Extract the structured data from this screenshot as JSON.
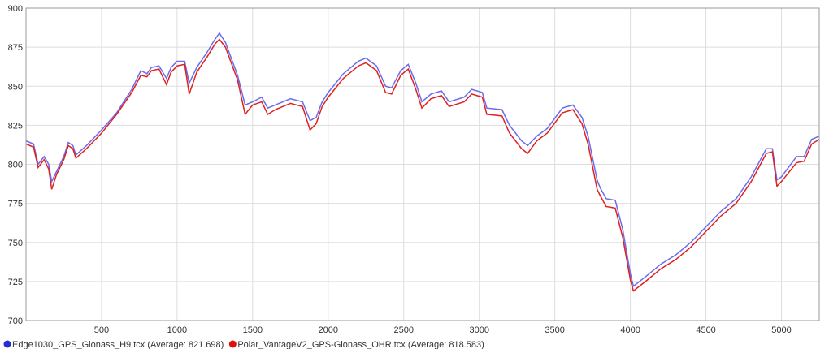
{
  "chart_data": {
    "type": "line",
    "x": [
      0,
      50,
      80,
      120,
      150,
      170,
      200,
      250,
      280,
      310,
      330,
      400,
      500,
      600,
      700,
      760,
      800,
      830,
      880,
      930,
      960,
      1000,
      1050,
      1080,
      1130,
      1200,
      1250,
      1280,
      1320,
      1400,
      1450,
      1500,
      1560,
      1600,
      1650,
      1750,
      1830,
      1880,
      1920,
      1960,
      2000,
      2100,
      2200,
      2250,
      2320,
      2380,
      2420,
      2480,
      2530,
      2580,
      2620,
      2680,
      2750,
      2800,
      2900,
      2950,
      3020,
      3050,
      3150,
      3200,
      3280,
      3320,
      3380,
      3450,
      3550,
      3620,
      3680,
      3720,
      3780,
      3800,
      3840,
      3900,
      3950,
      4000,
      4020,
      4100,
      4200,
      4300,
      4400,
      4500,
      4600,
      4700,
      4800,
      4900,
      4940,
      4970,
      5000,
      5100,
      5150,
      5200,
      5250
    ],
    "series": [
      {
        "name": "Edge1030_GPS_Glonass_H9.tcx (Average: 821.698)",
        "color": "#2b2bd4",
        "line_color": "#6b6bee",
        "values": [
          815,
          813,
          800,
          805,
          800,
          789,
          795,
          805,
          814,
          812,
          806,
          812,
          822,
          833,
          848,
          860,
          858,
          862,
          863,
          855,
          862,
          866,
          866,
          852,
          862,
          872,
          880,
          884,
          878,
          857,
          838,
          840,
          843,
          836,
          838,
          842,
          840,
          828,
          830,
          840,
          846,
          858,
          866,
          868,
          863,
          850,
          849,
          860,
          864,
          852,
          840,
          845,
          847,
          840,
          843,
          848,
          846,
          836,
          835,
          825,
          815,
          812,
          818,
          823,
          836,
          838,
          830,
          818,
          790,
          785,
          778,
          777,
          758,
          730,
          722,
          728,
          736,
          742,
          750,
          760,
          770,
          778,
          792,
          810,
          810,
          790,
          792,
          805,
          805,
          816,
          818
        ]
      },
      {
        "name": "Polar_VantageV2_GPS-Glonass_OHR.tcx (Average: 818.583)",
        "color": "#e01010",
        "line_color": "#e02020",
        "values": [
          813,
          811,
          798,
          803,
          797,
          784,
          793,
          803,
          812,
          810,
          804,
          810,
          820,
          832,
          846,
          857,
          856,
          860,
          861,
          851,
          859,
          863,
          864,
          845,
          859,
          869,
          877,
          880,
          875,
          854,
          832,
          838,
          840,
          832,
          835,
          839,
          837,
          822,
          826,
          837,
          843,
          855,
          863,
          865,
          860,
          846,
          845,
          857,
          861,
          848,
          836,
          842,
          844,
          837,
          840,
          845,
          843,
          832,
          831,
          820,
          810,
          807,
          815,
          820,
          833,
          835,
          826,
          813,
          784,
          780,
          773,
          772,
          753,
          726,
          719,
          725,
          733,
          739,
          747,
          757,
          767,
          775,
          789,
          807,
          808,
          786,
          789,
          801,
          802,
          813,
          816
        ]
      }
    ],
    "xlim": [
      0,
      5250
    ],
    "ylim": [
      700,
      900
    ],
    "xticks": [
      500,
      1000,
      1500,
      2000,
      2500,
      3000,
      3500,
      4000,
      4500,
      5000
    ],
    "yticks": [
      700,
      725,
      750,
      775,
      800,
      825,
      850,
      875,
      900
    ],
    "grid": true
  }
}
